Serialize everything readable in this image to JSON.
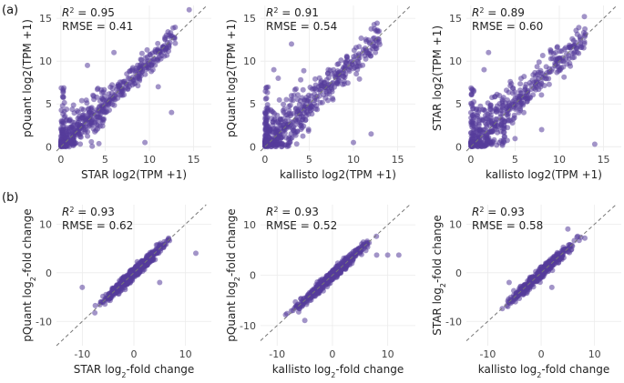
{
  "panel_tags": [
    "(a)",
    "(b)"
  ],
  "point_color": "#553c9a",
  "chart_data": [
    {
      "id": "a1",
      "type": "scatter",
      "xlabel": "STAR log2(TPM +1)",
      "ylabel": "pQuant log2(TPM +1)",
      "r2": "0.95",
      "rmse": "0.41",
      "xlim": [
        -0.5,
        17
      ],
      "ylim": [
        -0.5,
        16.5
      ],
      "xticks": [
        0,
        5,
        10,
        15
      ],
      "yticks": [
        0,
        5,
        10,
        15
      ],
      "spread": 1.3,
      "low_band": true,
      "off_points": [
        [
          9.5,
          0.5
        ],
        [
          6,
          11
        ],
        [
          11,
          7
        ],
        [
          3,
          9.5
        ],
        [
          14.5,
          16
        ],
        [
          12.5,
          4
        ]
      ]
    },
    {
      "id": "a2",
      "type": "scatter",
      "xlabel": "kallisto log2(TPM +1)",
      "ylabel": "pQuant log2(TPM +1)",
      "r2": "0.91",
      "rmse": "0.54",
      "xlim": [
        -0.5,
        17
      ],
      "ylim": [
        -0.5,
        16.5
      ],
      "xticks": [
        0,
        5,
        10,
        15
      ],
      "yticks": [
        0,
        5,
        10,
        15
      ],
      "spread": 1.9,
      "low_band": true,
      "off_points": [
        [
          10,
          0.5
        ],
        [
          1.5,
          8
        ],
        [
          1,
          9
        ],
        [
          12,
          1.5
        ],
        [
          3,
          12
        ]
      ]
    },
    {
      "id": "a3",
      "type": "scatter",
      "xlabel": "kallisto log2(TPM +1)",
      "ylabel": "STAR log2(TPM +1)",
      "r2": "0.89",
      "rmse": "0.60",
      "xlim": [
        -0.5,
        17
      ],
      "ylim": [
        -0.5,
        16.5
      ],
      "xticks": [
        0,
        5,
        10,
        15
      ],
      "yticks": [
        0,
        5,
        10,
        15
      ],
      "spread": 2.0,
      "low_band": true,
      "off_points": [
        [
          14,
          0.3
        ],
        [
          1.5,
          9
        ],
        [
          8,
          2
        ],
        [
          2,
          11
        ]
      ]
    },
    {
      "id": "b1",
      "type": "scatter",
      "xlabel_pre": "STAR log",
      "xlabel_post": "-fold change",
      "ylabel_pre": "pQuant log",
      "ylabel_post": "-fold change",
      "sub": "2",
      "r2": "0.93",
      "rmse": "0.62",
      "xlim": [
        -15,
        15
      ],
      "ylim": [
        -15,
        14
      ],
      "xticks": [
        -10,
        0,
        10
      ],
      "yticks": [
        -10,
        0,
        10
      ],
      "spread": 1.4,
      "low_band": false,
      "off_points": [
        [
          12,
          4
        ],
        [
          -10,
          -3
        ],
        [
          5,
          -2
        ]
      ]
    },
    {
      "id": "b2",
      "type": "scatter",
      "xlabel_pre": "kallisto log",
      "xlabel_post": "-fold change",
      "ylabel_pre": "pQuant log",
      "ylabel_post": "-fold change",
      "sub": "2",
      "r2": "0.93",
      "rmse": "0.52",
      "xlim": [
        -13,
        15
      ],
      "ylim": [
        -14,
        14
      ],
      "xticks": [
        -10,
        0,
        10
      ],
      "yticks": [
        -10,
        0,
        10
      ],
      "spread": 1.3,
      "low_band": false,
      "off_points": [
        [
          8,
          4
        ],
        [
          12,
          4
        ],
        [
          10,
          4
        ],
        [
          -5,
          -9
        ]
      ]
    },
    {
      "id": "b3",
      "type": "scatter",
      "xlabel_pre": "kallisto log",
      "xlabel_post": "-fold change",
      "ylabel_pre": "STAR log",
      "ylabel_post": "-fold change",
      "sub": "2",
      "r2": "0.93",
      "rmse": "0.58",
      "xlim": [
        -14,
        15
      ],
      "ylim": [
        -15,
        14
      ],
      "xticks": [
        -10,
        0,
        10
      ],
      "yticks": [
        -10,
        0,
        10
      ],
      "spread": 1.3,
      "low_band": false,
      "off_points": [
        [
          -6,
          -2
        ],
        [
          5,
          9
        ],
        [
          2,
          -3
        ]
      ]
    }
  ]
}
